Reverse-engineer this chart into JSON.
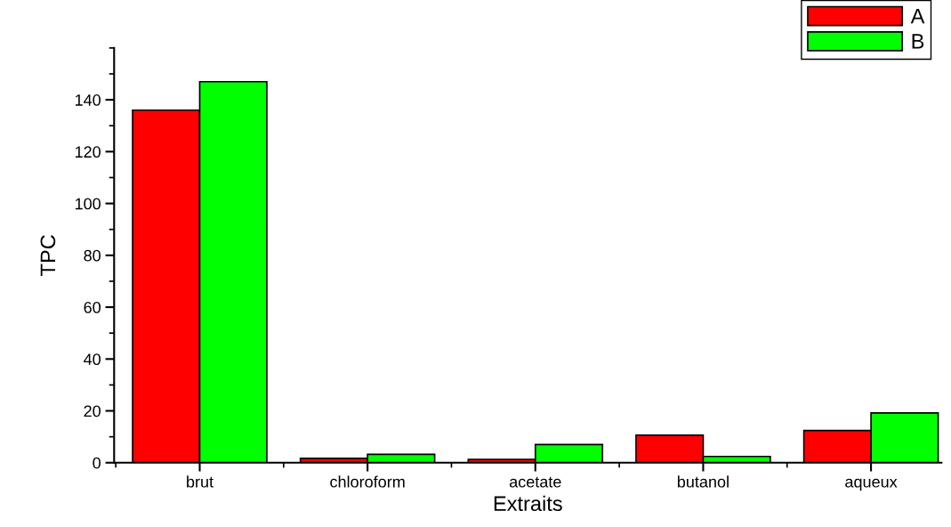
{
  "chart_data": {
    "type": "bar",
    "xlabel": "Extraits",
    "ylabel": "TPC",
    "categories": [
      "brut",
      "chloroform",
      "acetate",
      "butanol",
      "aqueux"
    ],
    "series": [
      {
        "name": "A",
        "color": "#ff0000",
        "values": [
          136,
          1.7,
          1.3,
          10.6,
          12.4
        ]
      },
      {
        "name": "B",
        "color": "#00ff00",
        "values": [
          147,
          3.2,
          7.0,
          2.4,
          19.2
        ]
      }
    ],
    "ylim": [
      0,
      160
    ],
    "yticks": [
      0,
      20,
      40,
      60,
      80,
      100,
      120,
      140
    ],
    "grid": false,
    "legend": "top right"
  }
}
